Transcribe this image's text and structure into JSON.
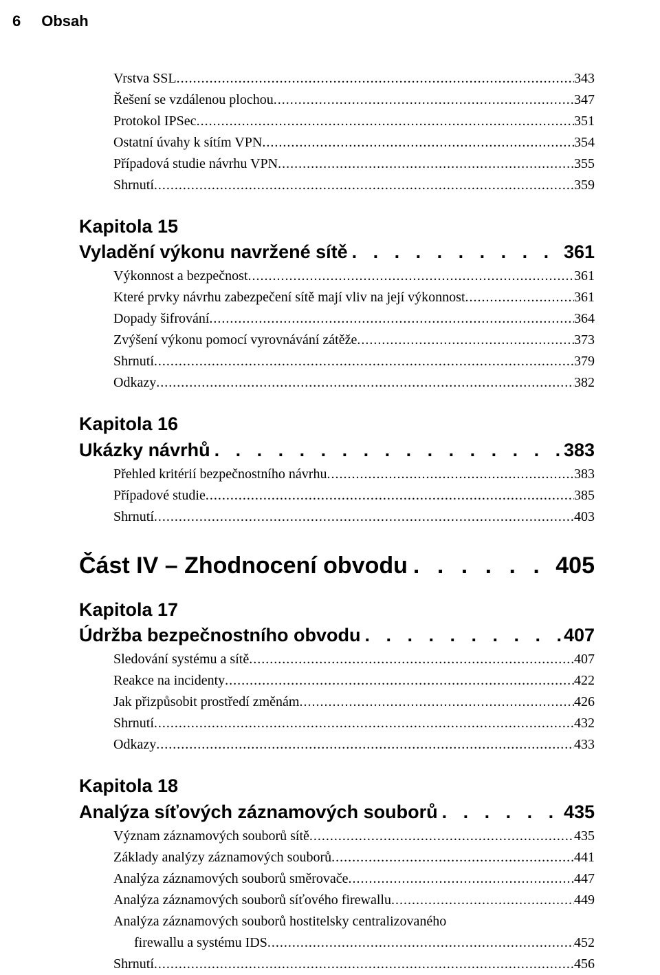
{
  "header": {
    "page_number": "6",
    "title": "Obsah"
  },
  "items_top": [
    {
      "label": "Vrstva SSL",
      "page": "343",
      "indent": "indent"
    },
    {
      "label": "Řešení se vzdálenou plochou",
      "page": "347",
      "indent": "indent"
    },
    {
      "label": "Protokol IPSec",
      "page": "351",
      "indent": "indent"
    },
    {
      "label": "Ostatní úvahy k sítím VPN",
      "page": "354",
      "indent": "indent"
    },
    {
      "label": "Případová studie návrhu VPN",
      "page": "355",
      "indent": "indent"
    },
    {
      "label": "Shrnutí",
      "page": "359",
      "indent": "indent"
    }
  ],
  "ch15": {
    "chapter": "Kapitola 15",
    "title": "Vyladění výkonu navržené sítě",
    "page": "361",
    "items": [
      {
        "label": "Výkonnost a bezpečnost",
        "page": "361",
        "indent": "indent"
      },
      {
        "label": "Které prvky návrhu zabezpečení sítě mají vliv na její výkonnost",
        "page": "361",
        "indent": "indent"
      },
      {
        "label": "Dopady šifrování",
        "page": "364",
        "indent": "indent"
      },
      {
        "label": "Zvýšení výkonu pomocí vyrovnávání zátěže",
        "page": "373",
        "indent": "indent"
      },
      {
        "label": "Shrnutí",
        "page": "379",
        "indent": "indent"
      },
      {
        "label": "Odkazy",
        "page": "382",
        "indent": "indent"
      }
    ]
  },
  "ch16": {
    "chapter": "Kapitola 16",
    "title": "Ukázky návrhů",
    "page": "383",
    "items": [
      {
        "label": "Přehled kritérií bezpečnostního návrhu",
        "page": "383",
        "indent": "indent"
      },
      {
        "label": "Případové studie",
        "page": "385",
        "indent": "indent"
      },
      {
        "label": "Shrnutí",
        "page": "403",
        "indent": "indent"
      }
    ]
  },
  "part4": {
    "title": "Část IV – Zhodnocení obvodu",
    "page": "405"
  },
  "ch17": {
    "chapter": "Kapitola 17",
    "title": "Údržba bezpečnostního obvodu",
    "page": "407",
    "items": [
      {
        "label": "Sledování systému a sítě",
        "page": "407",
        "indent": "indent"
      },
      {
        "label": "Reakce na incidenty",
        "page": "422",
        "indent": "indent"
      },
      {
        "label": "Jak přizpůsobit prostředí změnám",
        "page": "426",
        "indent": "indent"
      },
      {
        "label": "Shrnutí",
        "page": "432",
        "indent": "indent"
      },
      {
        "label": "Odkazy",
        "page": "433",
        "indent": "indent"
      }
    ]
  },
  "ch18": {
    "chapter": "Kapitola 18",
    "title": "Analýza síťových záznamových souborů",
    "page": "435",
    "items": [
      {
        "label": "Význam záznamových souborů sítě",
        "page": "435",
        "indent": "indent"
      },
      {
        "label": "Základy analýzy záznamových souborů",
        "page": "441",
        "indent": "indent"
      },
      {
        "label": "Analýza záznamových souborů směrovače",
        "page": "447",
        "indent": "indent"
      },
      {
        "label": "Analýza záznamových souborů síťového firewallu",
        "page": "449",
        "indent": "indent"
      },
      {
        "label": "Analýza záznamových souborů hostitelsky centralizovaného",
        "page": "",
        "indent": "indent",
        "no_leader": true
      },
      {
        "label": "firewallu a systému IDS",
        "page": "452",
        "indent": "indent2"
      },
      {
        "label": "Shrnutí",
        "page": "456",
        "indent": "indent"
      }
    ]
  }
}
